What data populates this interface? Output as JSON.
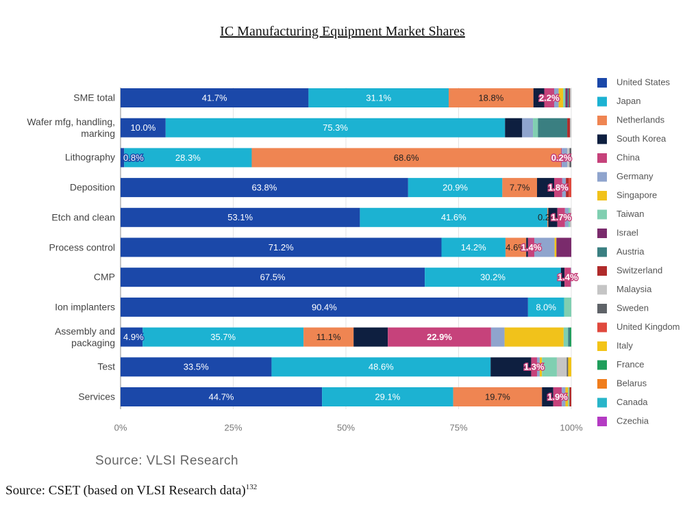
{
  "chart_data": {
    "type": "stacked_bar_horizontal",
    "title": "IC Manufacturing Equipment Market Shares",
    "categories": [
      "SME total",
      "Wafer mfg, handling, marking",
      "Lithography",
      "Deposition",
      "Etch and clean",
      "Process control",
      "CMP",
      "Ion implanters",
      "Assembly and packaging",
      "Test",
      "Services"
    ],
    "xlim": [
      0,
      100
    ],
    "xticks": [
      {
        "value": 0,
        "label": "0%"
      },
      {
        "value": 25,
        "label": "25%"
      },
      {
        "value": 50,
        "label": "50%"
      },
      {
        "value": 75,
        "label": "75%"
      },
      {
        "value": 100,
        "label": "100%"
      }
    ],
    "grid": true,
    "legend": "right",
    "series": [
      {
        "name": "United States",
        "color": "#1b48a9",
        "values": [
          41.7,
          10.0,
          0.8,
          63.8,
          53.1,
          71.2,
          67.5,
          90.4,
          4.9,
          33.5,
          44.7
        ],
        "value_labels": [
          "41.7%",
          "10.0%",
          "0.8%",
          "63.8%",
          "53.1%",
          "71.2%",
          "67.5%",
          "90.4%",
          "4.9%",
          "33.5%",
          "44.7%"
        ]
      },
      {
        "name": "Japan",
        "color": "#1cb2d2",
        "values": [
          31.1,
          75.3,
          28.3,
          20.9,
          41.6,
          14.2,
          30.2,
          8.0,
          35.7,
          48.6,
          29.1
        ],
        "value_labels": [
          "31.1%",
          "75.3%",
          "28.3%",
          "20.9%",
          "41.6%",
          "14.2%",
          "30.2%",
          "8.0%",
          "35.7%",
          "48.6%",
          "29.1%"
        ]
      },
      {
        "name": "Netherlands",
        "color": "#ef8552",
        "values": [
          18.8,
          0,
          68.6,
          7.7,
          0.2,
          4.6,
          0,
          0,
          11.1,
          0,
          19.7
        ],
        "value_labels": [
          "18.8%",
          null,
          "68.6%",
          "7.7%",
          "0.2%",
          "4.6%",
          null,
          null,
          "11.1%",
          null,
          "19.7%"
        ]
      },
      {
        "name": "South Korea",
        "color": "#0e1f40",
        "values": [
          2.4,
          3.8,
          0,
          3.8,
          2.0,
          0.4,
          0.8,
          0,
          7.6,
          9.0,
          2.5
        ]
      },
      {
        "name": "China",
        "color": "#c6427b",
        "values": [
          2.2,
          0,
          0.2,
          1.8,
          1.7,
          1.4,
          1.4,
          0,
          22.9,
          1.3,
          1.9
        ],
        "value_labels": [
          "2.2%",
          null,
          "0.2%",
          "1.8%",
          "1.7%",
          "1.4%",
          "1.4%",
          null,
          "22.9%",
          "1.3%",
          "1.9%"
        ]
      },
      {
        "name": "Germany",
        "color": "#8fa4cd",
        "values": [
          1.0,
          2.4,
          1.2,
          0.8,
          0.8,
          4.5,
          0.1,
          0,
          3.0,
          0.6,
          0.8
        ]
      },
      {
        "name": "Singapore",
        "color": "#f1c21b",
        "values": [
          1.0,
          0,
          0,
          0,
          0,
          0.4,
          0,
          0,
          13.1,
          0.5,
          0.6
        ]
      },
      {
        "name": "Taiwan",
        "color": "#80cfb1",
        "values": [
          0.5,
          1.1,
          0,
          0,
          0.3,
          0,
          0,
          1.6,
          1.0,
          3.3,
          0.3
        ]
      },
      {
        "name": "Israel",
        "color": "#7a2b6c",
        "values": [
          0.5,
          0,
          0,
          0,
          0,
          3.3,
          0,
          0,
          0,
          0,
          0
        ]
      },
      {
        "name": "Austria",
        "color": "#3a7f81",
        "values": [
          0.3,
          6.5,
          0,
          0,
          0,
          0,
          0,
          0,
          0.4,
          0,
          0
        ]
      },
      {
        "name": "Switzerland",
        "color": "#b02b2b",
        "values": [
          0.2,
          0.6,
          0,
          0.6,
          0,
          0,
          0,
          0,
          0,
          0,
          0.4
        ]
      },
      {
        "name": "Malaysia",
        "color": "#c5c5c5",
        "values": [
          0.3,
          0.3,
          0.5,
          0,
          0.3,
          0,
          0,
          0,
          0,
          2.2,
          0
        ]
      },
      {
        "name": "Sweden",
        "color": "#5f6368",
        "values": [
          0,
          0,
          0.4,
          0,
          0,
          0,
          0,
          0,
          0,
          0.3,
          0
        ]
      },
      {
        "name": "United Kingdom",
        "color": "#e0493d",
        "values": [
          0,
          0,
          0,
          0.6,
          0,
          0,
          0,
          0,
          0,
          0,
          0
        ]
      },
      {
        "name": "Italy",
        "color": "#f3c417",
        "values": [
          0,
          0,
          0,
          0,
          0,
          0,
          0,
          0,
          0,
          0.7,
          0
        ]
      },
      {
        "name": "France",
        "color": "#1f9e5b",
        "values": [
          0,
          0,
          0,
          0,
          0,
          0,
          0,
          0,
          0.3,
          0,
          0
        ]
      },
      {
        "name": "Belarus",
        "color": "#f07d1c",
        "values": [
          0,
          0,
          0,
          0,
          0,
          0,
          0,
          0,
          0,
          0,
          0
        ]
      },
      {
        "name": "Canada",
        "color": "#29b5c9",
        "values": [
          0,
          0,
          0,
          0,
          0,
          0,
          0,
          0,
          0,
          0,
          0
        ]
      },
      {
        "name": "Czechia",
        "color": "#b43bc3",
        "values": [
          0,
          0,
          0,
          0,
          0,
          0,
          0,
          0,
          0,
          0,
          0
        ]
      }
    ],
    "source": "Source: VLSI Research",
    "footnote": "Source: CSET (based on VLSI Research data)",
    "footnote_ref": "132"
  }
}
